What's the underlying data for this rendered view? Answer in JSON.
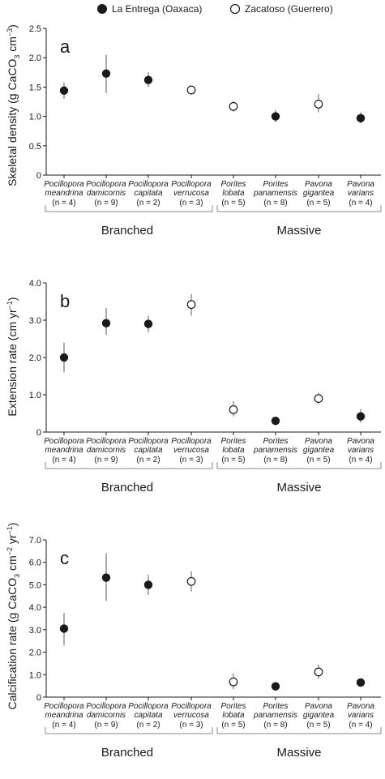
{
  "legend": {
    "filled": "La Entrega (Oaxaca)",
    "open": "Zacatoso (Guerrero)"
  },
  "chart_data": [
    {
      "type": "scatter",
      "panel_label": "a",
      "ylabel_main": "Skeletal density  (g CaCO",
      "ylabel_sub": "3",
      "ylabel_tail": " cm",
      "ylabel_sup": "−3",
      "ylabel_end": ")",
      "ylim": [
        0,
        2.5
      ],
      "yticks": [
        "0",
        "0.5",
        "1.0",
        "1.5",
        "2.0",
        "2.5"
      ],
      "yticks_values": [
        0,
        0.5,
        1.0,
        1.5,
        2.0,
        2.5
      ],
      "species": [
        {
          "genus": "Pocillopora",
          "epithet": "meandrina",
          "n": "(n = 4)",
          "site": "filled",
          "value": 1.44,
          "low": 1.3,
          "high": 1.58
        },
        {
          "genus": "Pocillopora",
          "epithet": "damicornis",
          "n": "(n = 9)",
          "site": "filled",
          "value": 1.73,
          "low": 1.4,
          "high": 2.05
        },
        {
          "genus": "Pocillopora",
          "epithet": "capitata",
          "n": "(n = 2)",
          "site": "filled",
          "value": 1.62,
          "low": 1.5,
          "high": 1.75
        },
        {
          "genus": "Pocillopora",
          "epithet": "verrucosa",
          "n": "(n = 3)",
          "site": "open",
          "value": 1.45,
          "low": 1.37,
          "high": 1.52
        },
        {
          "genus": "Porites",
          "epithet": "lobata",
          "n": "(n = 5)",
          "site": "open",
          "value": 1.17,
          "low": 1.08,
          "high": 1.26
        },
        {
          "genus": "Porites",
          "epithet": "panamensis",
          "n": "(n = 8)",
          "site": "filled",
          "value": 1.0,
          "low": 0.9,
          "high": 1.11
        },
        {
          "genus": "Pavona",
          "epithet": "gigantea",
          "n": "(n = 5)",
          "site": "open",
          "value": 1.21,
          "low": 1.07,
          "high": 1.38
        },
        {
          "genus": "Pavona",
          "epithet": "varians",
          "n": "(n = 4)",
          "site": "filled",
          "value": 0.97,
          "low": 0.88,
          "high": 1.07
        }
      ],
      "groups": [
        "Branched",
        "Massive"
      ]
    },
    {
      "type": "scatter",
      "panel_label": "b",
      "ylabel_main": "Extension rate (cm yr",
      "ylabel_sub": "",
      "ylabel_tail": "",
      "ylabel_sup": "−1",
      "ylabel_end": ")",
      "ylim": [
        0,
        4.0
      ],
      "yticks": [
        "0",
        "1.0",
        "2.0",
        "3.0",
        "4.0"
      ],
      "yticks_values": [
        0,
        1.0,
        2.0,
        3.0,
        4.0
      ],
      "species": [
        {
          "genus": "Pocillopora",
          "epithet": "meandrina",
          "n": "(n = 4)",
          "site": "filled",
          "value": 2.0,
          "low": 1.6,
          "high": 2.4
        },
        {
          "genus": "Pocillopora",
          "epithet": "damicornis",
          "n": "(n = 9)",
          "site": "filled",
          "value": 2.92,
          "low": 2.6,
          "high": 3.33
        },
        {
          "genus": "Pocillopora",
          "epithet": "capitata",
          "n": "(n = 2)",
          "site": "filled",
          "value": 2.9,
          "low": 2.68,
          "high": 3.12
        },
        {
          "genus": "Pocillopora",
          "epithet": "verrucosa",
          "n": "(n = 3)",
          "site": "open",
          "value": 3.42,
          "low": 3.12,
          "high": 3.7
        },
        {
          "genus": "Porites",
          "epithet": "lobata",
          "n": "(n = 5)",
          "site": "open",
          "value": 0.6,
          "low": 0.42,
          "high": 0.82
        },
        {
          "genus": "Porites",
          "epithet": "panamensis",
          "n": "(n = 8)",
          "site": "filled",
          "value": 0.3,
          "low": 0.2,
          "high": 0.4
        },
        {
          "genus": "Pavona",
          "epithet": "gigantea",
          "n": "(n = 5)",
          "site": "open",
          "value": 0.9,
          "low": 0.75,
          "high": 1.05
        },
        {
          "genus": "Pavona",
          "epithet": "varians",
          "n": "(n = 4)",
          "site": "filled",
          "value": 0.42,
          "low": 0.25,
          "high": 0.62
        }
      ],
      "groups": [
        "Branched",
        "Massive"
      ]
    },
    {
      "type": "scatter",
      "panel_label": "c",
      "ylabel_main": "Calcification rate  (g CaCO",
      "ylabel_sub": "3",
      "ylabel_tail": " cm",
      "ylabel_sup": "−2",
      "ylabel_tail2": " yr",
      "ylabel_sup2": "−1",
      "ylabel_end": ")",
      "ylim": [
        0,
        7.0
      ],
      "yticks": [
        "0",
        "1.0",
        "2.0",
        "3.0",
        "4.0",
        "5.0",
        "6.0",
        "7.0"
      ],
      "yticks_values": [
        0,
        1.0,
        2.0,
        3.0,
        4.0,
        5.0,
        6.0,
        7.0
      ],
      "species": [
        {
          "genus": "Pocillopora",
          "epithet": "meandrina",
          "n": "(n = 4)",
          "site": "filled",
          "value": 3.05,
          "low": 2.3,
          "high": 3.75
        },
        {
          "genus": "Pocillopora",
          "epithet": "damicornis",
          "n": "(n = 9)",
          "site": "filled",
          "value": 5.32,
          "low": 4.28,
          "high": 6.4
        },
        {
          "genus": "Pocillopora",
          "epithet": "capitata",
          "n": "(n = 2)",
          "site": "filled",
          "value": 5.0,
          "low": 4.55,
          "high": 5.45
        },
        {
          "genus": "Pocillopora",
          "epithet": "verrucosa",
          "n": "(n = 3)",
          "site": "open",
          "value": 5.15,
          "low": 4.7,
          "high": 5.6
        },
        {
          "genus": "Porites",
          "epithet": "lobata",
          "n": "(n = 5)",
          "site": "open",
          "value": 0.68,
          "low": 0.35,
          "high": 1.05
        },
        {
          "genus": "Porites",
          "epithet": "panamensis",
          "n": "(n = 8)",
          "site": "filled",
          "value": 0.48,
          "low": 0.3,
          "high": 0.65
        },
        {
          "genus": "Pavona",
          "epithet": "gigantea",
          "n": "(n = 5)",
          "site": "open",
          "value": 1.12,
          "low": 0.82,
          "high": 1.45
        },
        {
          "genus": "Pavona",
          "epithet": "varians",
          "n": "(n = 4)",
          "site": "filled",
          "value": 0.65,
          "low": 0.48,
          "high": 0.82
        }
      ],
      "groups": [
        "Branched",
        "Massive"
      ]
    }
  ]
}
